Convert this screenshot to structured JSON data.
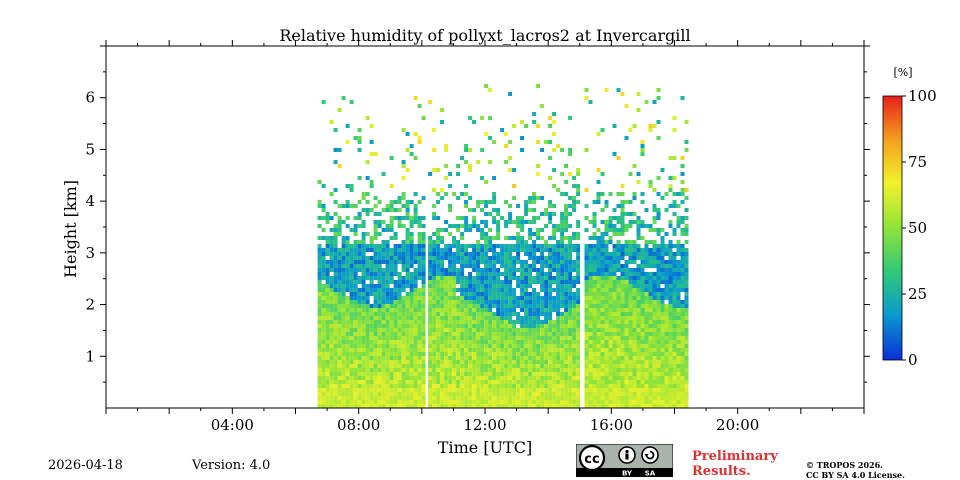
{
  "chart_data": {
    "type": "heatmap",
    "title": "Relative humidity of pollyxt_lacros2 at Invercargill",
    "xlabel": "Time [UTC]",
    "ylabel": "Height [km]",
    "xlim": [
      0,
      24
    ],
    "ylim": [
      0,
      7
    ],
    "x_ticks": [
      {
        "value": 4,
        "label": "04:00"
      },
      {
        "value": 8,
        "label": "08:00"
      },
      {
        "value": 12,
        "label": "12:00"
      },
      {
        "value": 16,
        "label": "16:00"
      },
      {
        "value": 20,
        "label": "20:00"
      }
    ],
    "y_ticks": [
      {
        "value": 1,
        "label": "1"
      },
      {
        "value": 2,
        "label": "2"
      },
      {
        "value": 3,
        "label": "3"
      },
      {
        "value": 4,
        "label": "4"
      },
      {
        "value": 5,
        "label": "5"
      },
      {
        "value": 6,
        "label": "6"
      }
    ],
    "colorbar": {
      "unit": "[%]",
      "min": 0,
      "max": 100,
      "ticks": [
        {
          "value": 0,
          "label": "0"
        },
        {
          "value": 25,
          "label": "25"
        },
        {
          "value": 50,
          "label": "50"
        },
        {
          "value": 75,
          "label": "75"
        },
        {
          "value": 100,
          "label": "100"
        }
      ],
      "colors": [
        "#0a2fd6",
        "#0a9ad0",
        "#2ec87a",
        "#8fe33a",
        "#f2f22a",
        "#f5a21e",
        "#e8201c"
      ]
    },
    "data_segments": [
      {
        "start": 6.7,
        "end": 10.05
      },
      {
        "start": 10.2,
        "end": 15.0
      },
      {
        "start": 15.15,
        "end": 18.4
      }
    ],
    "description_values": {
      "near_ground_humidity_pct": 60,
      "boundary_layer_top_km": 2.3,
      "upper_layer_humidity_pct": 20,
      "signal_top_km": 6.5
    }
  },
  "footer": {
    "date": "2026-04-18",
    "version": "Version: 4.0",
    "preliminary_line1": "Preliminary",
    "preliminary_line2": "Results.",
    "copyright_line1": "© TROPOS 2026.",
    "copyright_line2": "CC BY SA 4.0 License.",
    "cc_label": "cc",
    "by_label": "BY",
    "sa_label": "SA"
  }
}
